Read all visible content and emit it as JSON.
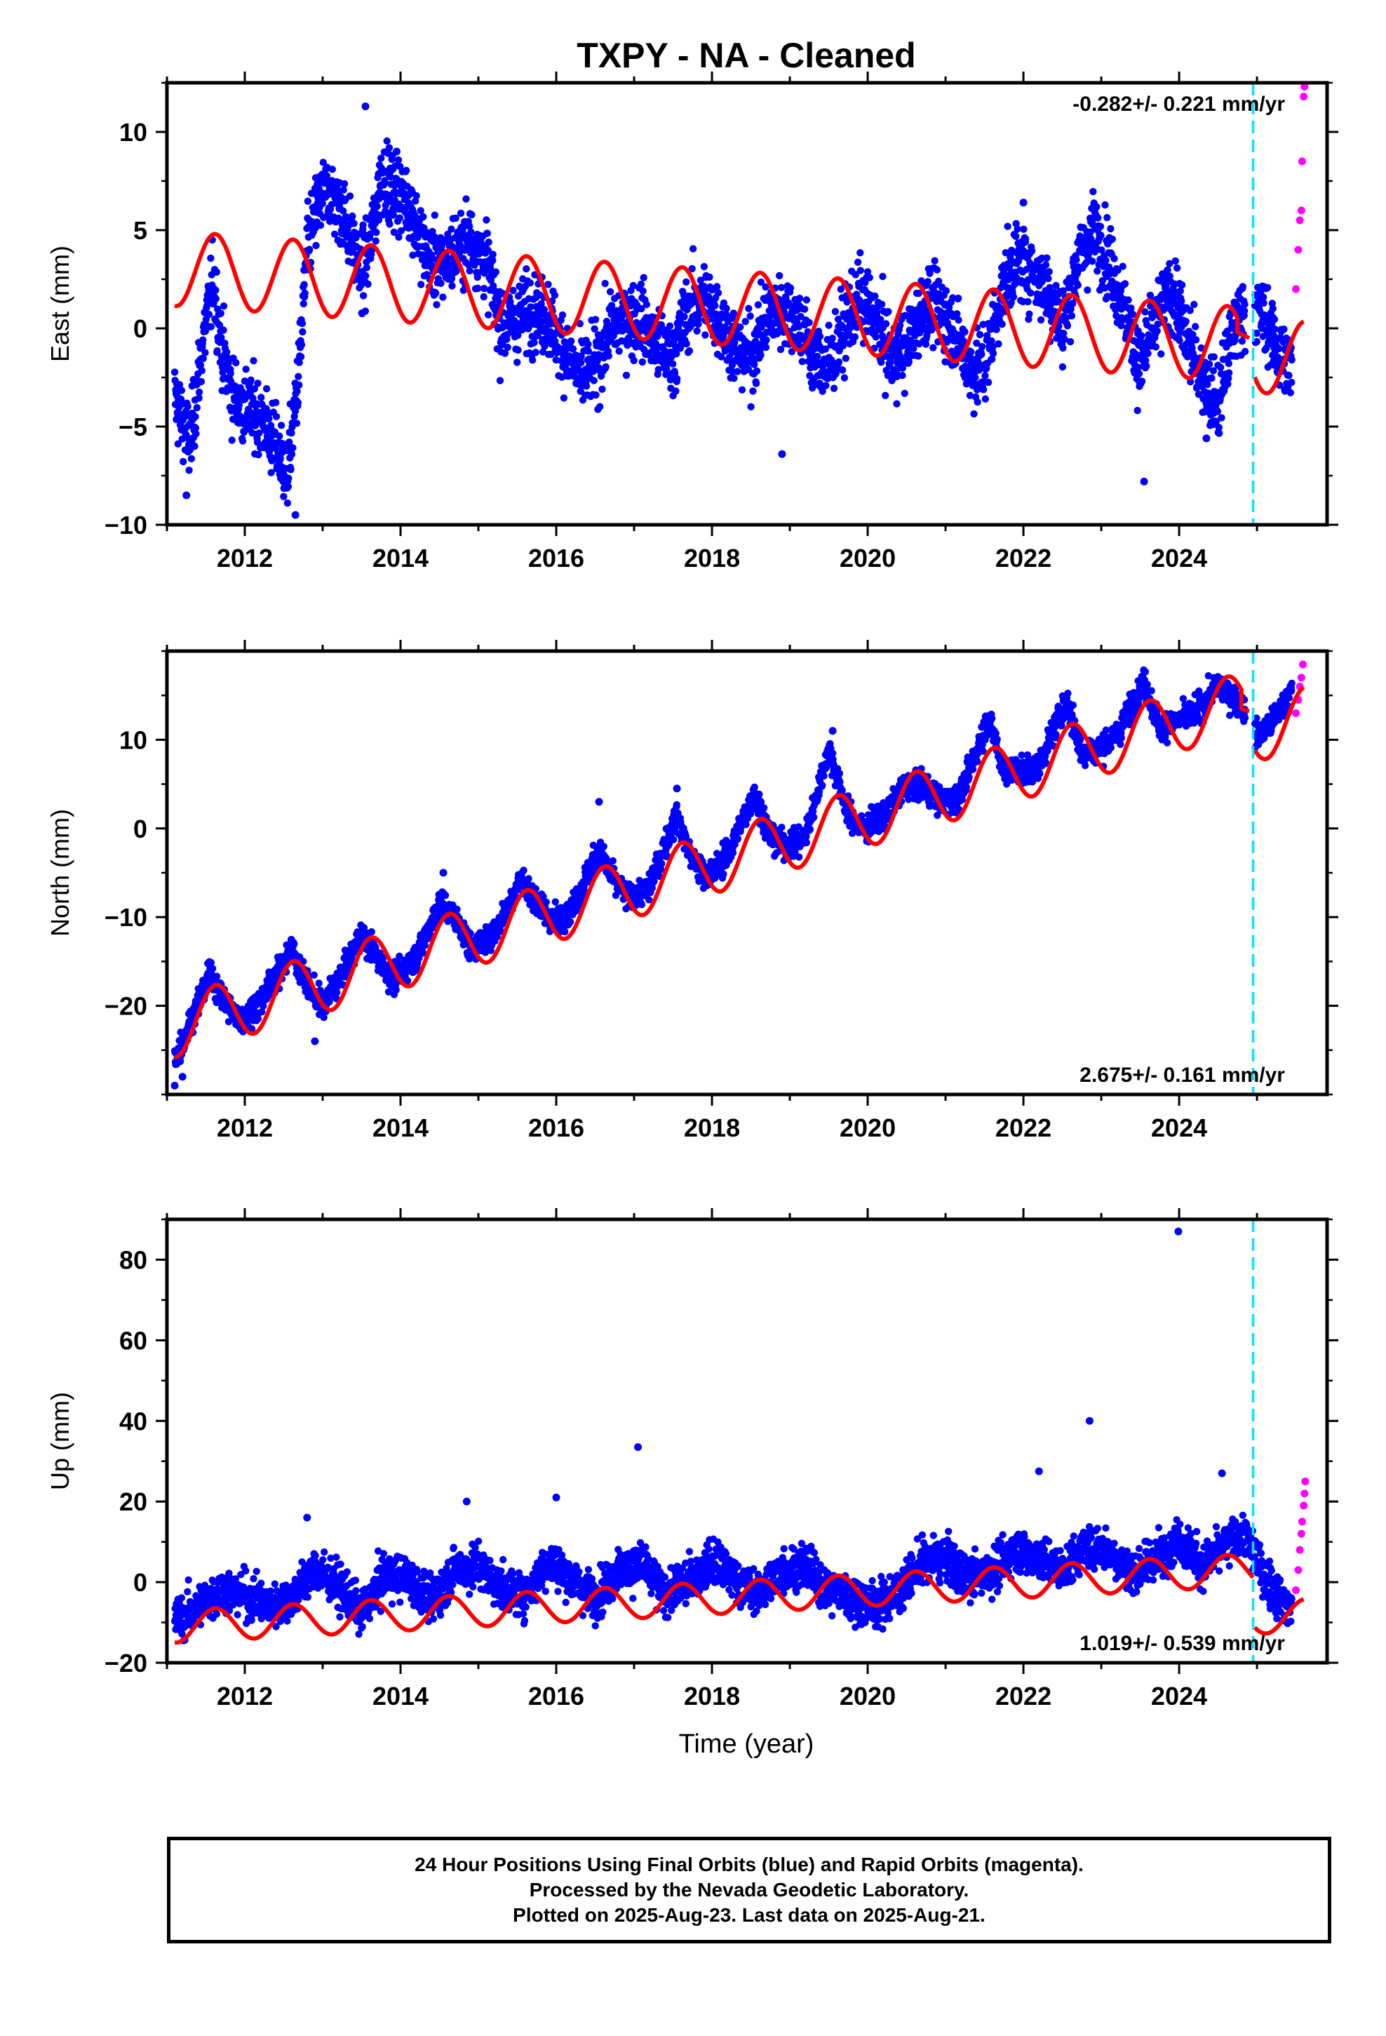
{
  "chart_data": {
    "title": "TXPY  - NA - Cleaned",
    "xlabel": "Time (year)",
    "type": "scatter",
    "xlim": [
      2011.0,
      2025.9
    ],
    "x_ticks": [
      "2012",
      "2014",
      "2016",
      "2018",
      "2020",
      "2022",
      "2024"
    ],
    "equipment_change_epoch": 2024.95,
    "colors": {
      "final": "#0000ff",
      "rapid": "#ff00ff",
      "model": "#ff0000",
      "marker": "#00e5ff"
    },
    "panels": [
      {
        "ylabel": "East (mm)",
        "ylim": [
          -10,
          12.5
        ],
        "y_ticks": [
          "10",
          "5",
          "0",
          "−5",
          "−10"
        ],
        "y_tick_values": [
          10,
          5,
          0,
          -5,
          -10
        ],
        "rate_label": "-0.282+/- 0.221 mm/yr",
        "rate_position": "top-right",
        "final_series": [
          [
            2011.1,
            -3.5
          ],
          [
            2011.3,
            -6.0
          ],
          [
            2011.45,
            -1.0
          ],
          [
            2011.6,
            2.5
          ],
          [
            2011.7,
            -1.0
          ],
          [
            2011.85,
            -3.5
          ],
          [
            2012.0,
            -4.0
          ],
          [
            2012.2,
            -4.5
          ],
          [
            2012.4,
            -6.0
          ],
          [
            2012.55,
            -7.5
          ],
          [
            2012.7,
            -2.0
          ],
          [
            2012.8,
            4.0
          ],
          [
            2012.95,
            6.5
          ],
          [
            2013.1,
            7.0
          ],
          [
            2013.3,
            5.5
          ],
          [
            2013.5,
            2.5
          ],
          [
            2013.65,
            5.0
          ],
          [
            2013.75,
            8.0
          ],
          [
            2013.9,
            7.0
          ],
          [
            2014.1,
            6.5
          ],
          [
            2014.3,
            4.0
          ],
          [
            2014.5,
            3.0
          ],
          [
            2014.7,
            4.0
          ],
          [
            2014.9,
            4.5
          ],
          [
            2015.1,
            3.5
          ],
          [
            2015.3,
            0.0
          ],
          [
            2015.5,
            0.5
          ],
          [
            2015.7,
            1.0
          ],
          [
            2015.9,
            0.5
          ],
          [
            2016.1,
            -1.0
          ],
          [
            2016.3,
            -2.5
          ],
          [
            2016.5,
            -2.0
          ],
          [
            2016.7,
            0.0
          ],
          [
            2016.9,
            0.5
          ],
          [
            2017.1,
            0.5
          ],
          [
            2017.3,
            -1.0
          ],
          [
            2017.5,
            -1.5
          ],
          [
            2017.7,
            1.0
          ],
          [
            2017.9,
            1.5
          ],
          [
            2018.1,
            0.5
          ],
          [
            2018.3,
            -1.0
          ],
          [
            2018.5,
            -1.5
          ],
          [
            2018.7,
            0.5
          ],
          [
            2018.9,
            1.0
          ],
          [
            2019.1,
            0.5
          ],
          [
            2019.3,
            -1.5
          ],
          [
            2019.5,
            -2.0
          ],
          [
            2019.7,
            0.0
          ],
          [
            2019.9,
            1.5
          ],
          [
            2020.1,
            0.5
          ],
          [
            2020.3,
            -1.5
          ],
          [
            2020.5,
            -1.0
          ],
          [
            2020.7,
            1.0
          ],
          [
            2020.9,
            1.0
          ],
          [
            2021.1,
            0.0
          ],
          [
            2021.3,
            -2.0
          ],
          [
            2021.5,
            -2.0
          ],
          [
            2021.7,
            1.5
          ],
          [
            2021.9,
            3.5
          ],
          [
            2022.1,
            3.0
          ],
          [
            2022.3,
            2.0
          ],
          [
            2022.5,
            0.0
          ],
          [
            2022.7,
            3.5
          ],
          [
            2022.9,
            5.0
          ],
          [
            2023.1,
            3.5
          ],
          [
            2023.3,
            1.0
          ],
          [
            2023.5,
            -2.0
          ],
          [
            2023.7,
            0.5
          ],
          [
            2023.9,
            2.0
          ],
          [
            2024.1,
            -0.5
          ],
          [
            2024.3,
            -2.5
          ],
          [
            2024.5,
            -4.0
          ],
          [
            2024.7,
            0.0
          ],
          [
            2024.9,
            1.5
          ],
          [
            2025.1,
            0.5
          ],
          [
            2025.3,
            -1.5
          ],
          [
            2025.45,
            -2.0
          ]
        ],
        "final_outliers": [
          [
            2011.25,
            -8.5
          ],
          [
            2012.65,
            -9.5
          ],
          [
            2013.55,
            11.3
          ],
          [
            2013.95,
            9.0
          ],
          [
            2018.9,
            -6.4
          ],
          [
            2022.0,
            6.4
          ],
          [
            2023.55,
            -7.8
          ],
          [
            2024.35,
            -5.6
          ]
        ],
        "rapid_series": [
          [
            2025.5,
            2.0
          ],
          [
            2025.53,
            4.0
          ],
          [
            2025.55,
            5.5
          ],
          [
            2025.57,
            6.0
          ],
          [
            2025.58,
            8.5
          ],
          [
            2025.6,
            11.8
          ],
          [
            2025.61,
            12.3
          ]
        ],
        "model_curve": {
          "segments": [
            [
              2011.1,
              2024.75
            ],
            [
              2024.97,
              2025.6
            ]
          ],
          "rate": -0.282,
          "annual_amplitude": 1.9,
          "offsets": [
            1.1,
            0.6
          ],
          "points_before_gap": [
            [
              2024.75,
              -0.2
            ],
            [
              2024.9,
              -0.5
            ]
          ]
        }
      },
      {
        "ylabel": "North (mm)",
        "ylim": [
          -30,
          20
        ],
        "y_ticks": [
          "10",
          "0",
          "−10",
          "−20"
        ],
        "y_tick_values": [
          10,
          0,
          -10,
          -20
        ],
        "rate_label": "2.675+/- 0.161 mm/yr",
        "rate_position": "bottom-right",
        "final_series": [
          [
            2011.1,
            -26.0
          ],
          [
            2011.3,
            -22.0
          ],
          [
            2011.55,
            -16.5
          ],
          [
            2011.75,
            -19.5
          ],
          [
            2011.95,
            -22.0
          ],
          [
            2012.2,
            -19.5
          ],
          [
            2012.45,
            -16.0
          ],
          [
            2012.6,
            -13.5
          ],
          [
            2012.8,
            -17.5
          ],
          [
            2013.0,
            -20.0
          ],
          [
            2013.25,
            -16.5
          ],
          [
            2013.5,
            -12.0
          ],
          [
            2013.7,
            -14.5
          ],
          [
            2013.9,
            -17.0
          ],
          [
            2014.2,
            -14.5
          ],
          [
            2014.5,
            -8.5
          ],
          [
            2014.7,
            -10.0
          ],
          [
            2014.9,
            -13.5
          ],
          [
            2015.2,
            -12.0
          ],
          [
            2015.55,
            -5.5
          ],
          [
            2015.75,
            -8.5
          ],
          [
            2015.95,
            -10.5
          ],
          [
            2016.2,
            -9.0
          ],
          [
            2016.55,
            -2.5
          ],
          [
            2016.75,
            -6.0
          ],
          [
            2016.95,
            -8.0
          ],
          [
            2017.2,
            -6.5
          ],
          [
            2017.55,
            1.5
          ],
          [
            2017.75,
            -3.5
          ],
          [
            2017.95,
            -5.5
          ],
          [
            2018.2,
            -3.0
          ],
          [
            2018.55,
            4.0
          ],
          [
            2018.75,
            -1.0
          ],
          [
            2018.95,
            -2.0
          ],
          [
            2019.2,
            -1.0
          ],
          [
            2019.5,
            9.0
          ],
          [
            2019.75,
            1.5
          ],
          [
            2019.95,
            0.0
          ],
          [
            2020.2,
            1.5
          ],
          [
            2020.5,
            5.0
          ],
          [
            2020.75,
            4.5
          ],
          [
            2020.95,
            3.0
          ],
          [
            2021.2,
            4.0
          ],
          [
            2021.55,
            12.5
          ],
          [
            2021.75,
            6.5
          ],
          [
            2021.95,
            6.5
          ],
          [
            2022.2,
            7.0
          ],
          [
            2022.55,
            14.5
          ],
          [
            2022.75,
            8.5
          ],
          [
            2022.95,
            9.0
          ],
          [
            2023.2,
            10.5
          ],
          [
            2023.55,
            16.5
          ],
          [
            2023.75,
            11.5
          ],
          [
            2023.95,
            12.0
          ],
          [
            2024.2,
            13.0
          ],
          [
            2024.5,
            16.0
          ],
          [
            2024.75,
            14.5
          ],
          [
            2025.0,
            10.5
          ],
          [
            2025.2,
            12.0
          ],
          [
            2025.45,
            15.5
          ]
        ],
        "final_outliers": [
          [
            2011.1,
            -29.0
          ],
          [
            2011.2,
            -28.0
          ],
          [
            2012.9,
            -24.0
          ],
          [
            2014.55,
            -5.0
          ],
          [
            2016.55,
            3.0
          ],
          [
            2017.55,
            4.5
          ],
          [
            2019.55,
            11.0
          ]
        ],
        "rapid_series": [
          [
            2025.5,
            13.0
          ],
          [
            2025.53,
            14.5
          ],
          [
            2025.55,
            16.0
          ],
          [
            2025.57,
            17.0
          ],
          [
            2025.59,
            18.5
          ]
        ],
        "model_curve": {
          "segments": [
            [
              2011.1,
              2024.8
            ],
            [
              2024.97,
              2025.6
            ]
          ],
          "rate": 2.675,
          "annual_amplitude": 3.4,
          "offsets": [
            -4.0,
            -7.8
          ],
          "points_before_gap": [
            [
              2024.8,
              13.5
            ],
            [
              2024.9,
              13.2
            ]
          ]
        }
      },
      {
        "ylabel": "Up (mm)",
        "ylim": [
          -20,
          90
        ],
        "y_ticks": [
          "80",
          "60",
          "40",
          "20",
          "0",
          "−20"
        ],
        "y_tick_values": [
          80,
          60,
          40,
          20,
          0,
          -20
        ],
        "rate_label": "1.019+/- 0.539 mm/yr",
        "rate_position": "bottom-right",
        "final_series": [
          [
            2011.1,
            -10
          ],
          [
            2011.4,
            -6
          ],
          [
            2011.7,
            -2
          ],
          [
            2012.0,
            -3
          ],
          [
            2012.3,
            -6
          ],
          [
            2012.6,
            -4
          ],
          [
            2012.9,
            3
          ],
          [
            2013.2,
            -1
          ],
          [
            2013.5,
            -8
          ],
          [
            2013.8,
            2
          ],
          [
            2014.1,
            1
          ],
          [
            2014.4,
            -5
          ],
          [
            2014.7,
            3
          ],
          [
            2015.0,
            4
          ],
          [
            2015.3,
            -2
          ],
          [
            2015.6,
            -3
          ],
          [
            2015.9,
            5
          ],
          [
            2016.2,
            1
          ],
          [
            2016.5,
            -4
          ],
          [
            2016.8,
            3
          ],
          [
            2017.1,
            4
          ],
          [
            2017.4,
            -3
          ],
          [
            2017.7,
            0
          ],
          [
            2018.0,
            5
          ],
          [
            2018.3,
            1
          ],
          [
            2018.6,
            -3
          ],
          [
            2018.9,
            3
          ],
          [
            2019.2,
            4
          ],
          [
            2019.5,
            -2
          ],
          [
            2019.8,
            -4
          ],
          [
            2020.1,
            -6
          ],
          [
            2020.4,
            -2
          ],
          [
            2020.7,
            5
          ],
          [
            2021.0,
            6
          ],
          [
            2021.3,
            1
          ],
          [
            2021.6,
            3
          ],
          [
            2021.9,
            8
          ],
          [
            2022.2,
            6
          ],
          [
            2022.5,
            3
          ],
          [
            2022.8,
            9
          ],
          [
            2023.1,
            8
          ],
          [
            2023.4,
            2
          ],
          [
            2023.7,
            6
          ],
          [
            2024.0,
            11
          ],
          [
            2024.3,
            4
          ],
          [
            2024.6,
            9
          ],
          [
            2024.85,
            12
          ],
          [
            2025.05,
            3
          ],
          [
            2025.25,
            -3
          ],
          [
            2025.45,
            -6
          ]
        ],
        "final_outliers": [
          [
            2017.05,
            33.5
          ],
          [
            2022.85,
            40
          ],
          [
            2023.99,
            87
          ],
          [
            2022.2,
            27.5
          ],
          [
            2016.0,
            21
          ],
          [
            2014.85,
            20
          ],
          [
            2012.8,
            16
          ],
          [
            2024.55,
            27
          ]
        ],
        "rapid_series": [
          [
            2025.5,
            -2
          ],
          [
            2025.53,
            3
          ],
          [
            2025.55,
            8
          ],
          [
            2025.57,
            12
          ],
          [
            2025.58,
            15
          ],
          [
            2025.6,
            19
          ],
          [
            2025.61,
            22
          ],
          [
            2025.62,
            25
          ]
        ],
        "model_curve": {
          "segments": [
            [
              2011.1,
              2024.95
            ],
            [
              2024.97,
              2025.6
            ]
          ],
          "rate": 1.019,
          "annual_amplitude": 4.0,
          "offsets": [
            -4.0,
            -16.0
          ]
        }
      }
    ]
  },
  "footer": {
    "line1": "24 Hour Positions Using Final Orbits (blue) and Rapid Orbits (magenta).",
    "line2": "Processed by the Nevada Geodetic Laboratory.",
    "line3": "Plotted on 2025-Aug-23. Last data on 2025-Aug-21."
  }
}
